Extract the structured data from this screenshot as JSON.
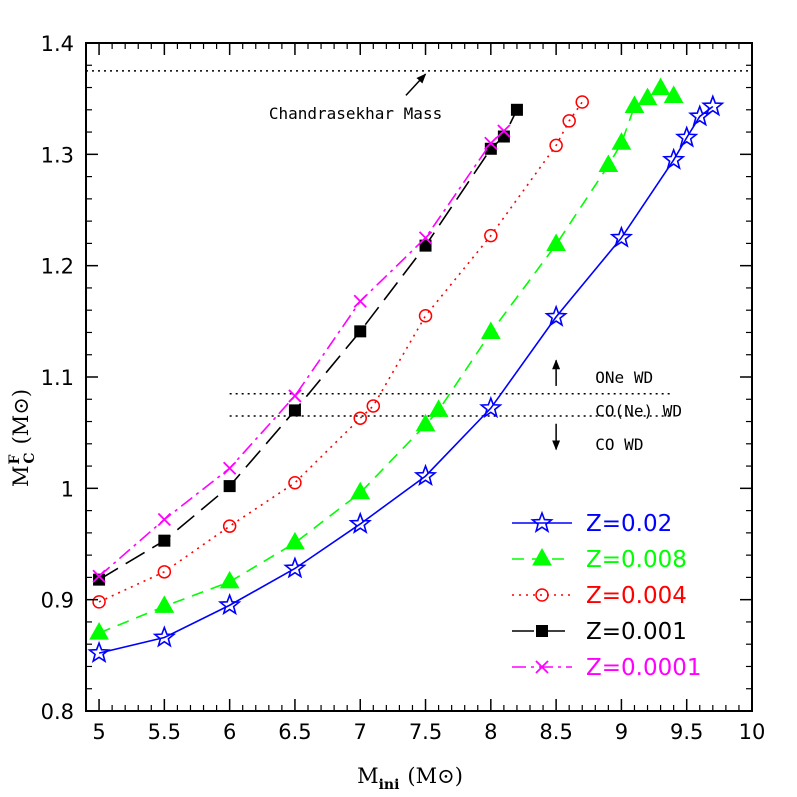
{
  "chart_data": {
    "type": "line",
    "xlabel": {
      "main": "M",
      "sub": "ini",
      "unit": "(M⊙)"
    },
    "ylabel": {
      "main": "M",
      "sup": "F",
      "sub": "C",
      "unit": "(M⊙)"
    },
    "xlim": [
      4.9,
      10.0
    ],
    "ylim": [
      0.8,
      1.4
    ],
    "xticks": [
      "5",
      "5.5",
      "6",
      "6.5",
      "7",
      "7.5",
      "8",
      "8.5",
      "9",
      "9.5",
      "10"
    ],
    "yticks": [
      "0.8",
      "0.9",
      "1",
      "1.1",
      "1.2",
      "1.3",
      "1.4"
    ],
    "grid": false,
    "legend_position": "bottom-right",
    "reference_lines": [
      {
        "y": 1.375,
        "x_from": 4.9,
        "x_to": 10.0
      },
      {
        "y": 1.085,
        "x_from": 6.0,
        "x_to": 9.4
      },
      {
        "y": 1.065,
        "x_from": 6.0,
        "x_to": 9.4
      }
    ],
    "annotations": [
      {
        "text": "Chandrasekhar Mass",
        "x": 6.3,
        "y": 1.337,
        "arrow_from": [
          7.35,
          1.353
        ],
        "arrow_to": [
          7.5,
          1.372
        ]
      },
      {
        "text": "ONe WD",
        "x": 8.8,
        "y": 1.1,
        "arrow": "up",
        "arrow_x": 8.5,
        "arrow_from_y": 1.092,
        "arrow_to_y": 1.115
      },
      {
        "text": "CO(Ne) WD",
        "x": 8.8,
        "y": 1.07
      },
      {
        "text": "CO WD",
        "x": 8.8,
        "y": 1.04,
        "arrow": "down",
        "arrow_x": 8.5,
        "arrow_from_y": 1.058,
        "arrow_to_y": 1.035
      }
    ],
    "series": [
      {
        "name": "Z=0.02",
        "color": "#0000ff",
        "marker": "star",
        "dash": "",
        "x": [
          5.0,
          5.5,
          6.0,
          6.5,
          7.0,
          7.5,
          8.0,
          8.5,
          9.0,
          9.4,
          9.5,
          9.6,
          9.7
        ],
        "y": [
          0.852,
          0.866,
          0.895,
          0.928,
          0.968,
          1.011,
          1.072,
          1.154,
          1.225,
          1.295,
          1.315,
          1.334,
          1.343
        ]
      },
      {
        "name": "Z=0.008",
        "color": "#00ff00",
        "marker": "triangle",
        "dash": "12,8",
        "x": [
          5.0,
          5.5,
          6.0,
          6.5,
          7.0,
          7.5,
          7.6,
          8.0,
          8.5,
          8.9,
          9.0,
          9.1,
          9.2,
          9.3,
          9.4
        ],
        "y": [
          0.87,
          0.894,
          0.916,
          0.951,
          0.996,
          1.057,
          1.07,
          1.14,
          1.219,
          1.29,
          1.31,
          1.343,
          1.35,
          1.359,
          1.352
        ]
      },
      {
        "name": "Z=0.004",
        "color": "#ff0000",
        "marker": "circle",
        "dash": "2,5",
        "x": [
          5.0,
          5.5,
          6.0,
          6.5,
          7.0,
          7.1,
          7.5,
          8.0,
          8.5,
          8.6,
          8.7
        ],
        "y": [
          0.898,
          0.925,
          0.966,
          1.005,
          1.063,
          1.074,
          1.155,
          1.227,
          1.308,
          1.33,
          1.347
        ]
      },
      {
        "name": "Z=0.001",
        "color": "#000000",
        "marker": "square",
        "dash": "22,9",
        "x": [
          5.0,
          5.5,
          6.0,
          6.5,
          7.0,
          7.5,
          8.0,
          8.1,
          8.2
        ],
        "y": [
          0.918,
          0.953,
          1.002,
          1.07,
          1.141,
          1.218,
          1.305,
          1.316,
          1.34
        ]
      },
      {
        "name": "Z=0.0001",
        "color": "#ff00ff",
        "marker": "cross",
        "dash": "14,5,3,5",
        "x": [
          5.0,
          5.5,
          6.0,
          6.5,
          7.0,
          7.5,
          8.0,
          8.1
        ],
        "y": [
          0.921,
          0.972,
          1.018,
          1.083,
          1.168,
          1.225,
          1.31,
          1.321
        ]
      }
    ]
  }
}
